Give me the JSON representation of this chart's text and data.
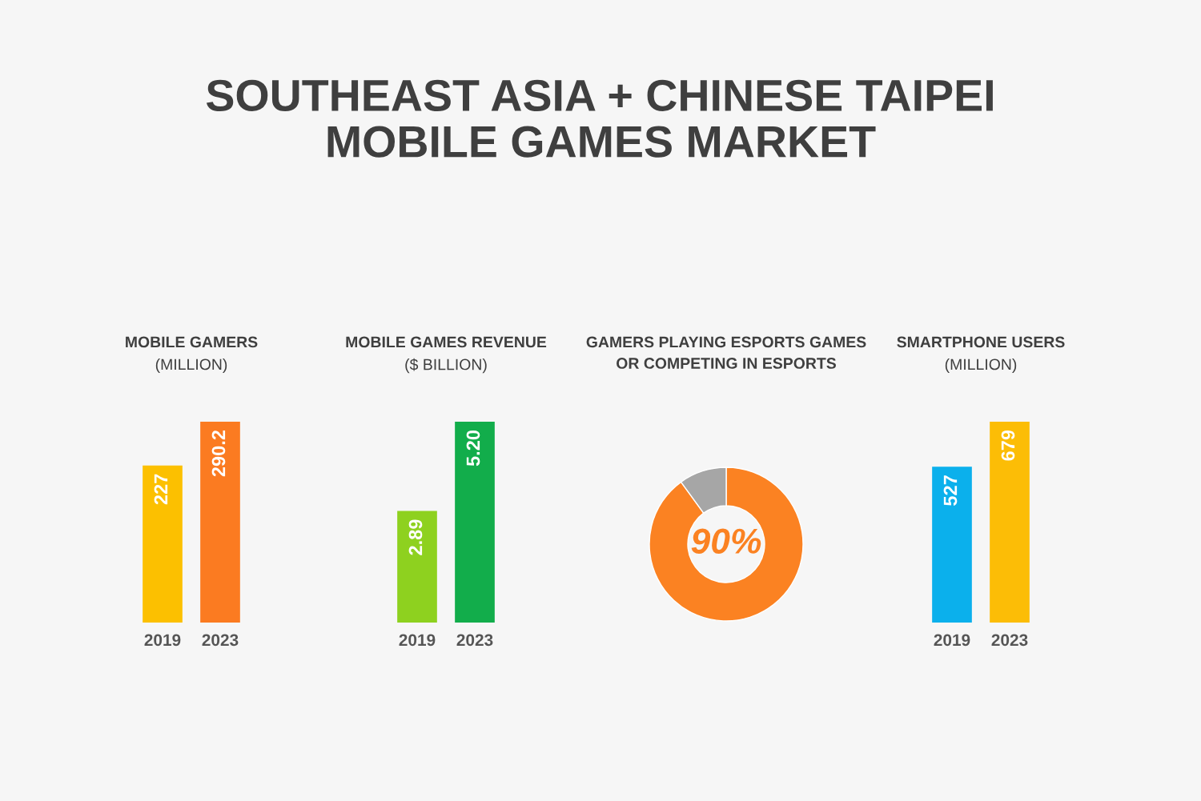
{
  "chart_data": [
    {
      "type": "other",
      "title": "SOUTHEAST ASIA + CHINESE TAIPEI\nMOBILE GAMES MARKET"
    },
    {
      "type": "bar",
      "title": "MOBILE GAMERS",
      "subtitle": "(MILLION)",
      "categories": [
        "2019",
        "2023"
      ],
      "values": [
        227,
        290.2
      ],
      "colors": [
        "#fcc000",
        "#fb7b21"
      ],
      "data_labels": true
    },
    {
      "type": "bar",
      "title": "MOBILE GAMES REVENUE",
      "subtitle": "($ BILLION)",
      "categories": [
        "2019",
        "2023"
      ],
      "values": [
        2.89,
        5.2
      ],
      "value_labels": [
        "2.89",
        "5.20"
      ],
      "colors": [
        "#8ed11f",
        "#12ad4b"
      ]
    },
    {
      "type": "donut",
      "title": "GAMERS PLAYING ESPORTS GAMES\nOR COMPETING IN ESPORTS",
      "categories": [
        null,
        null
      ],
      "values": [
        90,
        10
      ],
      "value_labels": [
        "90%",
        null
      ],
      "colors": [
        "#fb8222",
        "#a6a6a6"
      ]
    },
    {
      "type": "bar",
      "title": "SMARTPHONE USERS",
      "subtitle": "(MILLION)",
      "categories": [
        "2019",
        "2023"
      ],
      "values": [
        527,
        679
      ],
      "colors": [
        "#0bb0ec",
        "#fcbd06"
      ],
      "data_labels": true
    }
  ]
}
